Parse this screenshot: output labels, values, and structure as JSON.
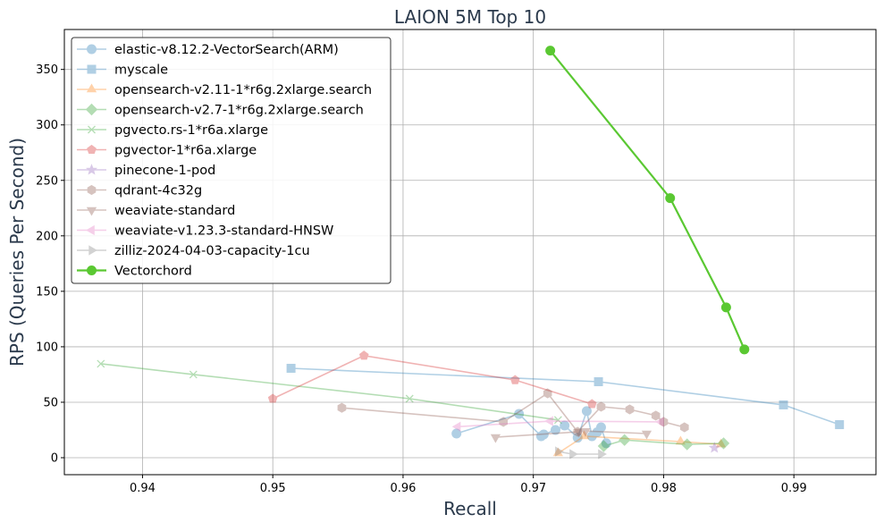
{
  "chart_data": {
    "type": "line",
    "title": "LAION 5M Top 10",
    "xlabel": "Recall",
    "ylabel": "RPS (Queries Per Second)",
    "xlim": [
      0.934,
      0.9963
    ],
    "ylim": [
      -15.3,
      386
    ],
    "xticks": [
      0.94,
      0.95,
      0.96,
      0.97,
      0.98,
      0.99
    ],
    "xtick_labels": [
      "0.94",
      "0.95",
      "0.96",
      "0.97",
      "0.98",
      "0.99"
    ],
    "yticks": [
      0,
      50,
      100,
      150,
      200,
      250,
      300,
      350
    ],
    "ytick_labels": [
      "0",
      "50",
      "100",
      "150",
      "200",
      "250",
      "300",
      "350"
    ],
    "grid": true,
    "legend_placement": "top-left",
    "series": [
      {
        "name": "elastic-v8.12.2-VectorSearch(ARM)",
        "color": "#1f77b4",
        "marker": "circle",
        "alpha": 0.35,
        "x": [
          0.9641,
          0.9689,
          0.9706,
          0.9708,
          0.9717,
          0.9724,
          0.9734,
          0.9741,
          0.9745,
          0.9749,
          0.9752,
          0.9756
        ],
        "y": [
          21.8,
          39.5,
          19.4,
          21,
          25,
          29,
          18,
          42,
          19.4,
          23,
          27.4,
          13
        ]
      },
      {
        "name": "myscale",
        "color": "#1f77b4",
        "marker": "square",
        "alpha": 0.35,
        "x": [
          0.9514,
          0.975,
          0.9892,
          0.9935
        ],
        "y": [
          80.6,
          68.5,
          47.6,
          29.8
        ]
      },
      {
        "name": "opensearch-v2.11-1*r6g.2xlarge.search",
        "color": "#ff7f0e",
        "marker": "triangle-up",
        "alpha": 0.35,
        "x": [
          0.9719,
          0.9739,
          0.9813,
          0.9844
        ],
        "y": [
          4,
          19.4,
          14.5,
          12
        ]
      },
      {
        "name": "opensearch-v2.7-1*r6g.2xlarge.search",
        "color": "#2ca02c",
        "marker": "diamond",
        "alpha": 0.35,
        "x": [
          0.9754,
          0.977,
          0.9818,
          0.9846
        ],
        "y": [
          10.5,
          16,
          12,
          13
        ]
      },
      {
        "name": "pgvecto.rs-1*r6a.xlarge",
        "color": "#2ca02c",
        "marker": "x",
        "alpha": 0.35,
        "x": [
          0.9368,
          0.9439,
          0.9605,
          0.9719
        ],
        "y": [
          84.7,
          75,
          53.2,
          34
        ]
      },
      {
        "name": "pgvector-1*r6a.xlarge",
        "color": "#d62728",
        "marker": "pentagon",
        "alpha": 0.35,
        "x": [
          0.95,
          0.957,
          0.9686,
          0.9745
        ],
        "y": [
          53.2,
          92,
          70,
          48.4
        ]
      },
      {
        "name": "pinecone-1-pod",
        "color": "#9467bd",
        "marker": "star",
        "alpha": 0.35,
        "x": [
          0.9839
        ],
        "y": [
          8.9
        ]
      },
      {
        "name": "qdrant-4c32g",
        "color": "#8c564b",
        "marker": "hexagon",
        "alpha": 0.35,
        "x": [
          0.9553,
          0.9677,
          0.9711,
          0.9734,
          0.9752,
          0.9774,
          0.9794,
          0.98,
          0.9816
        ],
        "y": [
          45,
          32.3,
          58,
          23.4,
          46,
          43.5,
          38,
          32.3,
          27.4
        ]
      },
      {
        "name": "weaviate-standard",
        "color": "#8c564b",
        "marker": "triangle-down",
        "alpha": 0.35,
        "x": [
          0.9671,
          0.9735,
          0.974,
          0.9787
        ],
        "y": [
          18.5,
          23.4,
          24,
          21.8
        ]
      },
      {
        "name": "weaviate-v1.23.3-standard-HNSW",
        "color": "#e377c2",
        "marker": "triangle-left",
        "alpha": 0.35,
        "x": [
          0.9642,
          0.9713,
          0.9798
        ],
        "y": [
          28,
          33,
          32.3
        ]
      },
      {
        "name": "zilliz-2024-04-03-capacity-1cu",
        "color": "#7f7f7f",
        "marker": "triangle-right",
        "alpha": 0.35,
        "x": [
          0.9719,
          0.973,
          0.9752
        ],
        "y": [
          5.6,
          3.2,
          3.2
        ]
      },
      {
        "name": "Vectorchord",
        "color": "#5ac832",
        "marker": "circle",
        "alpha": 1,
        "x": [
          0.9713,
          0.9805,
          0.9848,
          0.9862
        ],
        "y": [
          367,
          234,
          135.5,
          97.6
        ]
      }
    ]
  }
}
